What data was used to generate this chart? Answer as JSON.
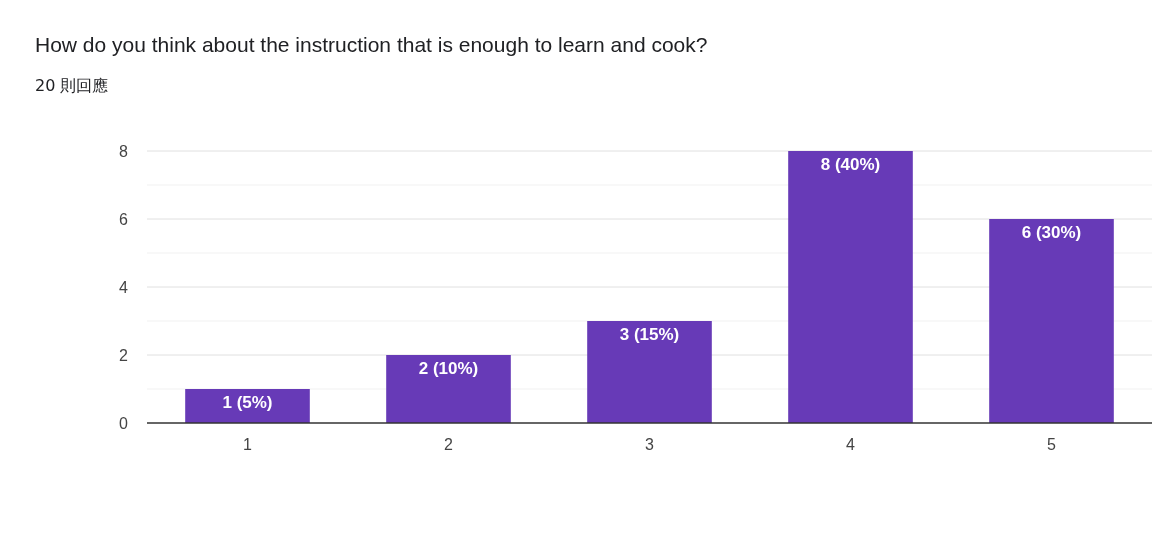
{
  "chart_data": {
    "type": "bar",
    "title": "How do you think about the instruction that is enough to learn and cook?",
    "subtitle": "20 則回應",
    "categories": [
      "1",
      "2",
      "3",
      "4",
      "5"
    ],
    "values": [
      1,
      2,
      3,
      8,
      6
    ],
    "value_labels": [
      "1 (5%)",
      "2 (10%)",
      "3 (15%)",
      "8 (40%)",
      "6 (30%)"
    ],
    "color": "#673ab7",
    "ylim": [
      0,
      8
    ],
    "yticks": [
      0,
      {
        "value": 1,
        "label": null
      },
      2,
      {
        "value": 3,
        "label": null
      },
      4,
      {
        "value": 5,
        "label": null
      },
      6,
      {
        "value": 7,
        "label": null
      },
      8
    ],
    "grid": "y"
  }
}
